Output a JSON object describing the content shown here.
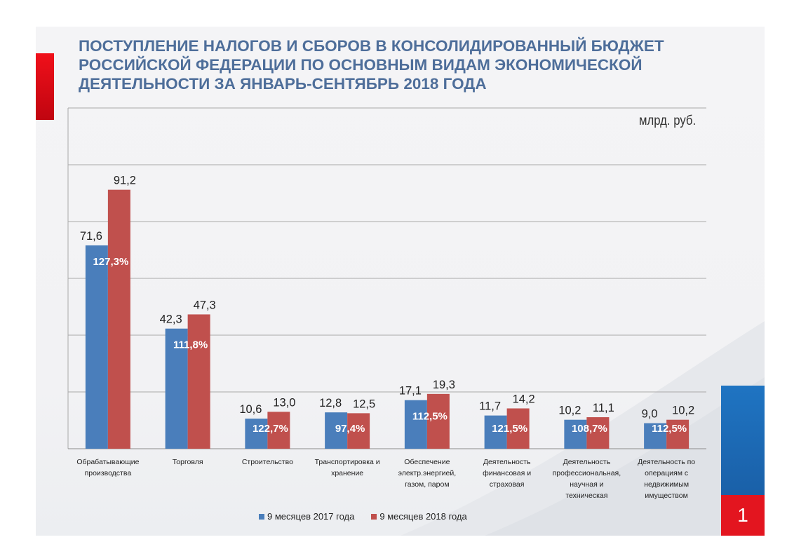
{
  "header": {
    "title_lines": [
      "ПОСТУПЛЕНИЕ НАЛОГОВ И СБОРОВ В КОНСОЛИДИРОВАННЫЙ БЮДЖЕТ",
      "РОССИЙСКОЙ ФЕДЕРАЦИИ ПО ОСНОВНЫМ ВИДАМ ЭКОНОМИЧЕСКОЙ",
      "ДЕЯТЕЛЬНОСТИ ЗА ЯНВАРЬ-СЕНТЯБРЬ 2018 ГОДА"
    ],
    "unit": "млрд. руб."
  },
  "page_number": "1",
  "colors": {
    "series_2017": "#4a7ebb",
    "series_2018": "#c0504d",
    "title": "#4e6e9a",
    "flag_blue": "#1f74c2",
    "flag_red": "#e3151f"
  },
  "chart_data": {
    "type": "bar",
    "categories": [
      [
        "Обрабатывающие",
        "производства"
      ],
      [
        "Торговля"
      ],
      [
        "Строительство"
      ],
      [
        "Транспортировка и",
        "хранение"
      ],
      [
        "Обеспечение",
        "электр.энергией,",
        "газом, паром"
      ],
      [
        "Деятельность",
        "финансовая и",
        "страховая"
      ],
      [
        "Деятельность",
        "профессиональная,",
        "научная и",
        "техническая"
      ],
      [
        "Деятельность  по",
        "операциям с",
        "недвижимым",
        "имуществом"
      ]
    ],
    "series": [
      {
        "name": "9 месяцев 2017 года",
        "values": [
          71.6,
          42.3,
          10.6,
          12.8,
          17.1,
          11.7,
          10.2,
          9.0
        ],
        "labels": [
          "71,6",
          "42,3",
          "10,6",
          "12,8",
          "17,1",
          "11,7",
          "10,2",
          "9,0"
        ],
        "color": "#4a7ebb"
      },
      {
        "name": "9 месяцев 2018 года",
        "values": [
          91.2,
          47.3,
          13.0,
          12.5,
          19.3,
          14.2,
          11.1,
          10.2
        ],
        "labels": [
          "91,2",
          "47,3",
          "13,0",
          "12,5",
          "19,3",
          "14,2",
          "11,1",
          "10,2"
        ],
        "color": "#c0504d"
      }
    ],
    "growth_labels": [
      "127,3%",
      "111,8%",
      "122,7%",
      "97,4%",
      "112,5%",
      "121,5%",
      "108,7%",
      "112,5%"
    ],
    "ylim": [
      0,
      120
    ],
    "y_grid_step": 10,
    "grid": true,
    "legend_position": "bottom"
  }
}
